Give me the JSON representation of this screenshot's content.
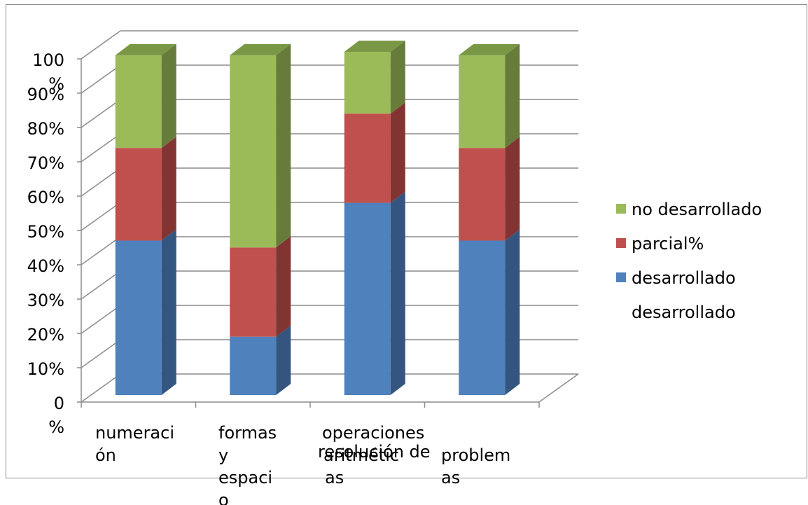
{
  "chart_data": {
    "type": "bar",
    "stacked": true,
    "three_d": true,
    "title": "",
    "xlabel": "",
    "ylabel": "",
    "ylim": [
      0,
      100
    ],
    "y_ticks": [
      [
        "0",
        "%"
      ],
      [
        "10%"
      ],
      [
        "20%"
      ],
      [
        "30%"
      ],
      [
        "40%"
      ],
      [
        "50%"
      ],
      [
        "60%"
      ],
      [
        "70%"
      ],
      [
        "80%"
      ],
      [
        "90%"
      ],
      [
        "100",
        "%"
      ]
    ],
    "categories": [
      [
        "numeraci",
        "ón"
      ],
      [
        "formas",
        "y",
        "espaci",
        "o"
      ],
      [
        "operaciones",
        "aritmétic",
        "as"
      ],
      [
        "resolución de",
        "problem",
        "as"
      ]
    ],
    "series": [
      {
        "name": "desarrollado",
        "values": [
          45,
          17,
          56,
          45
        ],
        "color": "#4f81bd",
        "side": "#34557f",
        "top": "#3b6395"
      },
      {
        "name": "parcial%",
        "values": [
          27,
          26,
          26,
          27
        ],
        "color": "#c0504d",
        "side": "#823432",
        "top": "#97403d"
      },
      {
        "name": "no desarrollado",
        "values": [
          27,
          56,
          18,
          27
        ],
        "color": "#9bbb59",
        "side": "#677c3b",
        "top": "#7a9746"
      }
    ],
    "legend": {
      "position": "right",
      "order": [
        "no desarrollado",
        "parcial%",
        "desarrollado"
      ],
      "extra_line": "desarrollado"
    },
    "grid": true
  }
}
